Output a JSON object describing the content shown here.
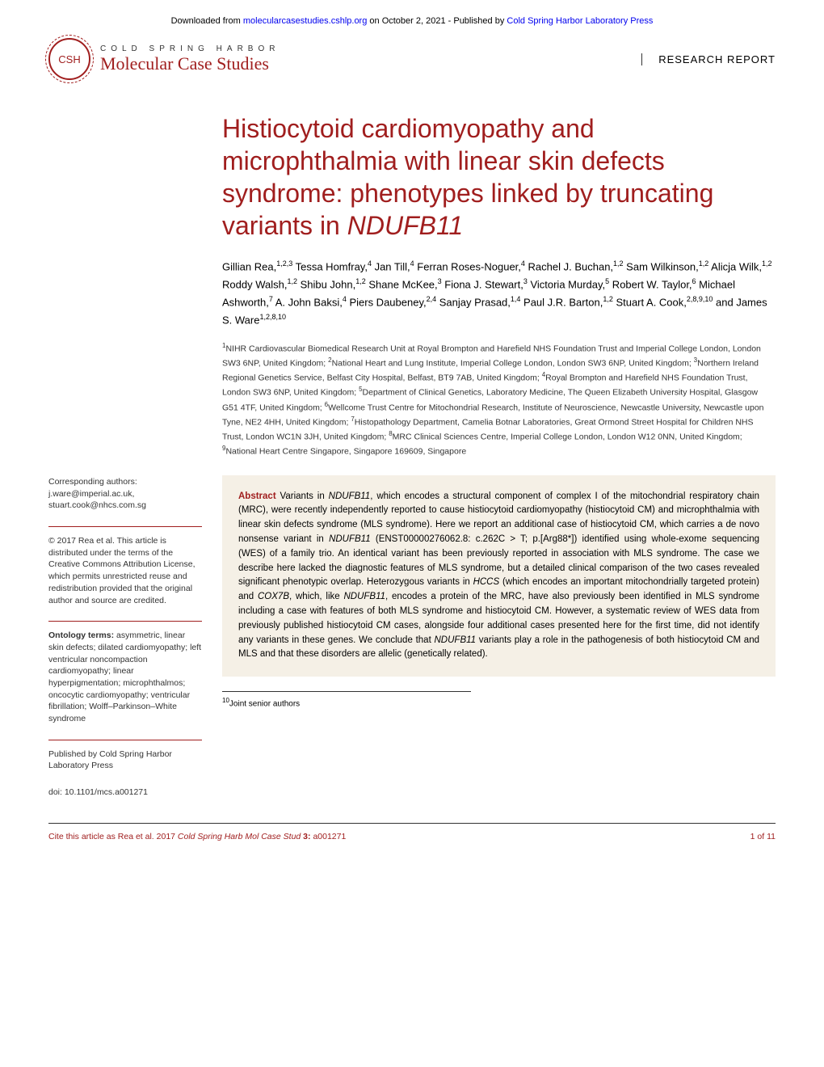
{
  "banner": {
    "prefix": "Downloaded from ",
    "link1": "molecularcasestudies.cshlp.org",
    "mid": " on October 2, 2021 - Published by ",
    "link2": "Cold Spring Harbor Laboratory Press"
  },
  "logo": {
    "csh": "CSH",
    "top": "COLD SPRING HARBOR",
    "bottom": "Molecular Case Studies"
  },
  "reportType": "RESEARCH REPORT",
  "title": "Histiocytoid cardiomyopathy and microphthalmia with linear skin defects syndrome: phenotypes linked by truncating variants in ",
  "titleGene": "NDUFB11",
  "authorsHtml": "Gillian Rea,<sup>1,2,3</sup> Tessa Homfray,<sup>4</sup> Jan Till,<sup>4</sup> Ferran Roses-Noguer,<sup>4</sup> Rachel J. Buchan,<sup>1,2</sup> Sam Wilkinson,<sup>1,2</sup> Alicja Wilk,<sup>1,2</sup> Roddy Walsh,<sup>1,2</sup> Shibu John,<sup>1,2</sup> Shane McKee,<sup>3</sup> Fiona J. Stewart,<sup>3</sup> Victoria Murday,<sup>5</sup> Robert W. Taylor,<sup>6</sup> Michael Ashworth,<sup>7</sup> A. John Baksi,<sup>4</sup> Piers Daubeney,<sup>2,4</sup> Sanjay Prasad,<sup>1,4</sup> Paul J.R. Barton,<sup>1,2</sup> Stuart A. Cook,<sup>2,8,9,10</sup> and James S. Ware<sup>1,2,8,10</sup>",
  "affiliationsHtml": "<sup>1</sup>NIHR Cardiovascular Biomedical Research Unit at Royal Brompton and Harefield NHS Foundation Trust and Imperial College London, London SW3 6NP, United Kingdom; <sup>2</sup>National Heart and Lung Institute, Imperial College London, London SW3 6NP, United Kingdom; <sup>3</sup>Northern Ireland Regional Genetics Service, Belfast City Hospital, Belfast, BT9 7AB, United Kingdom; <sup>4</sup>Royal Brompton and Harefield NHS Foundation Trust, London SW3 6NP, United Kingdom; <sup>5</sup>Department of Clinical Genetics, Laboratory Medicine, The Queen Elizabeth University Hospital, Glasgow G51 4TF, United Kingdom; <sup>6</sup>Wellcome Trust Centre for Mitochondrial Research, Institute of Neuroscience, Newcastle University, Newcastle upon Tyne, NE2 4HH, United Kingdom; <sup>7</sup>Histopathology Department, Camelia Botnar Laboratories, Great Ormond Street Hospital for Children NHS Trust, London WC1N 3JH, United Kingdom; <sup>8</sup>MRC Clinical Sciences Centre, Imperial College London, London W12 0NN, United Kingdom; <sup>9</sup>National Heart Centre Singapore, Singapore 169609, Singapore",
  "sidebar": {
    "corresponding": "Corresponding authors: j.ware@imperial.ac.uk, stuart.cook@nhcs.com.sg",
    "copyright": "© 2017 Rea et al. This article is distributed under the terms of the Creative Commons Attribution License, which permits unrestricted reuse and redistribution provided that the original author and source are credited.",
    "ontologyLabel": "Ontology terms:",
    "ontology": " asymmetric, linear skin defects; dilated cardiomyopathy; left ventricular noncompaction cardiomyopathy; linear hyperpigmentation; microphthalmos; oncocytic cardiomyopathy; ventricular fibrillation; Wolff–Parkinson–White syndrome",
    "publisher": "Published by Cold Spring Harbor Laboratory Press",
    "doi": "doi: 10.1101/mcs.a001271"
  },
  "abstractLabel": "Abstract",
  "abstractHtml": " Variants in <em>NDUFB11</em>, which encodes a structural component of complex I of the mitochondrial respiratory chain (MRC), were recently independently reported to cause histiocytoid cardiomyopathy (histiocytoid CM) and microphthalmia with linear skin defects syndrome (MLS syndrome). Here we report an additional case of histiocytoid CM, which carries a de novo nonsense variant in <em>NDUFB11</em> (ENST00000276062.8: c.262C > T; p.[Arg88*]) identified using whole-exome sequencing (WES) of a family trio. An identical variant has been previously reported in association with MLS syndrome. The case we describe here lacked the diagnostic features of MLS syndrome, but a detailed clinical comparison of the two cases revealed significant phenotypic overlap. Heterozygous variants in <em>HCCS</em> (which encodes an important mitochondrially targeted protein) and <em>COX7B</em>, which, like <em>NDUFB11</em>, encodes a protein of the MRC, have also previously been identified in MLS syndrome including a case with features of both MLS syndrome and histiocytoid CM. However, a systematic review of WES data from previously published histiocytoid CM cases, alongside four additional cases presented here for the first time, did not identify any variants in these genes. We conclude that <em>NDUFB11</em> variants play a role in the pathogenesis of both histiocytoid CM and MLS and that these disorders are allelic (genetically related).",
  "footnote": "Joint senior authors",
  "footnoteSup": "10",
  "citation": {
    "prefix": "Cite this article as ",
    "text": "Rea et al. 2017 ",
    "journal": "Cold Spring Harb Mol Case Stud ",
    "vol": "3: ",
    "id": "a001271",
    "page": "1 of 11"
  },
  "colors": {
    "brand": "#a01e1e",
    "abstractBg": "#f5f0e6",
    "link": "#0000ee"
  }
}
